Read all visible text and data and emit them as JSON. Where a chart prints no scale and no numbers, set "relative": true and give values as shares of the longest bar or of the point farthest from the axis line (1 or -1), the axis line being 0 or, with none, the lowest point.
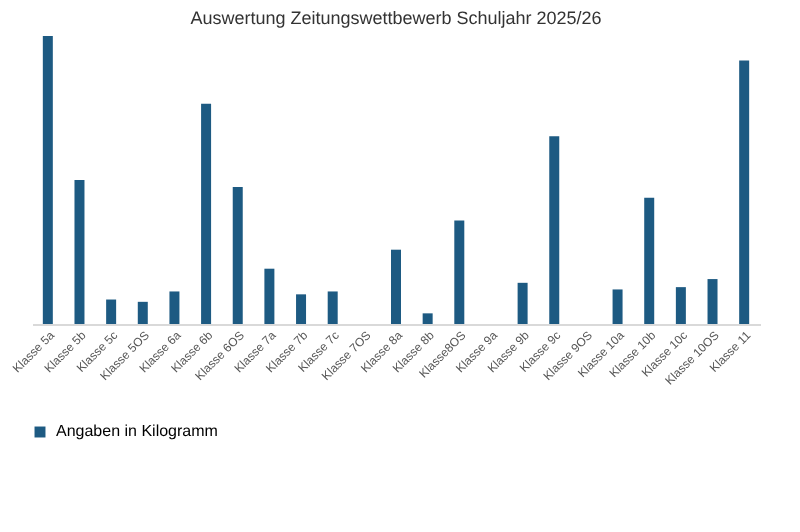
{
  "chart_data": {
    "type": "bar",
    "title": "Auswertung Zeitungswettbewerb  Schuljahr 2025/26",
    "relative": true,
    "legend": "bottom",
    "categories": [
      "Klasse 5a",
      "Klasse 5b",
      "Klasse 5c",
      "Klasse 5OS",
      "Klasse 6a",
      "Klasse 6b",
      "Klasse 6OS",
      "Klasse 7a",
      "Klasse 7b",
      "Klasse 7c",
      "Klasse 7OS",
      "Klasse 8a",
      "Klasse 8b",
      "Klasse8OS",
      "Klasse 9a",
      "Klasse 9b",
      "Klasse 9c",
      "Klasse 9OS",
      "Klasse 10a",
      "Klasse 10b",
      "Klasse 10c",
      "Klasse 10OS",
      "Klasse 11"
    ],
    "series": [
      {
        "name": "Angaben in Kilogramm",
        "color": "#1d5a82",
        "values": [
          1,
          0.5,
          0.085,
          0.077,
          0.113,
          0.765,
          0.476,
          0.192,
          0.103,
          0.113,
          0,
          0.258,
          0.037,
          0.359,
          0,
          0.143,
          0.652,
          0,
          0.12,
          0.438,
          0.128,
          0.156,
          0.915
        ]
      }
    ]
  }
}
